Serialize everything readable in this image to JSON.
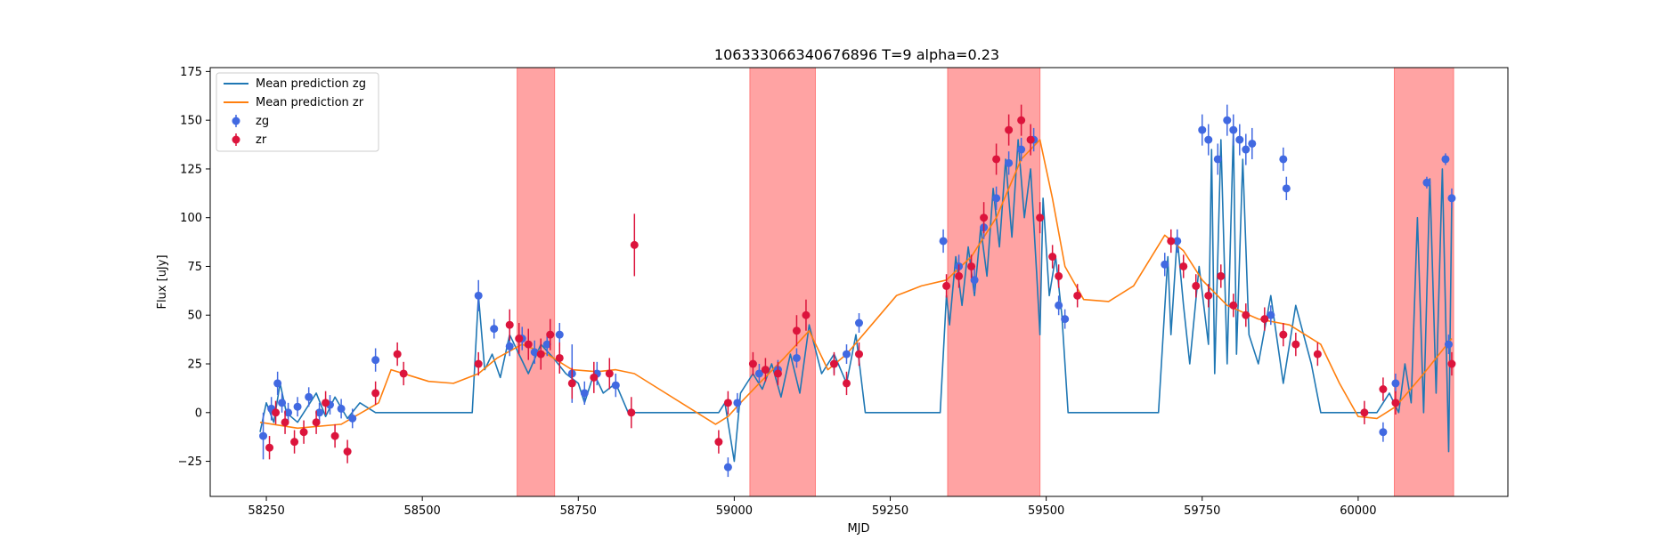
{
  "chart_data": {
    "type": "line",
    "title": "106333066340676896 T=9 alpha=0.23",
    "xlabel": "MJD",
    "ylabel": "Flux [uJy]",
    "xlim": [
      58160,
      60240
    ],
    "ylim": [
      -43,
      177
    ],
    "x_ticks": [
      58250,
      58500,
      58750,
      59000,
      59250,
      59500,
      59750,
      60000
    ],
    "y_ticks": [
      -25,
      0,
      25,
      50,
      75,
      100,
      125,
      150,
      175
    ],
    "grid": false,
    "legend_position": "upper-left",
    "legend": [
      {
        "label": "Mean prediction zg",
        "kind": "line",
        "color": "#1f77b4"
      },
      {
        "label": "Mean prediction zr",
        "kind": "line",
        "color": "#ff7f0e"
      },
      {
        "label": "zg",
        "kind": "errorbar",
        "color": "#4169e1"
      },
      {
        "label": "zr",
        "kind": "errorbar",
        "color": "#dc143c"
      }
    ],
    "shaded_regions": [
      {
        "x0": 58652,
        "x1": 58712
      },
      {
        "x0": 59025,
        "x1": 59130
      },
      {
        "x0": 59342,
        "x1": 59490
      },
      {
        "x0": 60058,
        "x1": 60153
      }
    ],
    "shade_color": "#ff6666",
    "series": [
      {
        "name": "Mean prediction zr",
        "color": "#ff7f0e",
        "x": [
          58240,
          58300,
          58370,
          58430,
          58450,
          58480,
          58510,
          58550,
          58590,
          58620,
          58660,
          58700,
          58740,
          58780,
          58810,
          58840,
          58880,
          58930,
          58970,
          58990,
          59010,
          59040,
          59080,
          59120,
          59150,
          59180,
          59220,
          59260,
          59300,
          59340,
          59380,
          59420,
          59460,
          59490,
          59510,
          59530,
          59560,
          59600,
          59640,
          59690,
          59720,
          59750,
          59790,
          59840,
          59890,
          59940,
          59970,
          60000,
          60030,
          60060,
          60100,
          60150
        ],
        "y": [
          -5,
          -8,
          -6,
          5,
          22,
          19,
          16,
          15,
          20,
          28,
          35,
          30,
          22,
          21,
          22,
          20,
          12,
          2,
          -6,
          -2,
          5,
          15,
          28,
          42,
          22,
          30,
          45,
          60,
          65,
          68,
          80,
          100,
          130,
          140,
          110,
          75,
          58,
          57,
          65,
          91,
          83,
          68,
          55,
          48,
          45,
          35,
          15,
          -2,
          -3,
          3,
          18,
          38
        ]
      },
      {
        "name": "Mean prediction zg",
        "color": "#1f77b4",
        "x": [
          58240,
          58250,
          58262,
          58272,
          58282,
          58300,
          58330,
          58345,
          58360,
          58380,
          58400,
          58425,
          58450,
          58480,
          58520,
          58560,
          58580,
          58590,
          58600,
          58612,
          58625,
          58640,
          58655,
          58670,
          58690,
          58710,
          58730,
          58750,
          58760,
          58775,
          58790,
          58810,
          58830,
          58850,
          58900,
          58950,
          58975,
          58985,
          59000,
          59010,
          59030,
          59045,
          59060,
          59075,
          59090,
          59105,
          59120,
          59140,
          59160,
          59180,
          59195,
          59210,
          59260,
          59300,
          59330,
          59340,
          59345,
          59355,
          59365,
          59375,
          59385,
          59395,
          59405,
          59415,
          59425,
          59435,
          59445,
          59455,
          59465,
          59475,
          59485,
          59490,
          59495,
          59505,
          59515,
          59525,
          59535,
          59560,
          59620,
          59680,
          59695,
          59700,
          59710,
          59720,
          59730,
          59745,
          59760,
          59765,
          59770,
          59780,
          59790,
          59800,
          59805,
          59815,
          59825,
          59840,
          59860,
          59880,
          59900,
          59925,
          59940,
          59960,
          60000,
          60030,
          60050,
          60065,
          60075,
          60085,
          60095,
          60105,
          60115,
          60125,
          60135,
          60145,
          60150
        ],
        "y": [
          -10,
          5,
          -5,
          15,
          0,
          -5,
          10,
          -2,
          8,
          -3,
          5,
          0,
          0,
          0,
          0,
          0,
          0,
          60,
          22,
          30,
          18,
          40,
          30,
          20,
          35,
          28,
          20,
          15,
          5,
          20,
          10,
          15,
          0,
          0,
          0,
          0,
          0,
          5,
          -25,
          10,
          20,
          12,
          25,
          8,
          30,
          10,
          45,
          20,
          30,
          15,
          40,
          0,
          0,
          0,
          0,
          60,
          45,
          80,
          55,
          85,
          60,
          95,
          70,
          115,
          85,
          130,
          90,
          140,
          100,
          125,
          70,
          40,
          110,
          60,
          80,
          50,
          0,
          0,
          0,
          0,
          80,
          40,
          90,
          55,
          25,
          75,
          35,
          135,
          20,
          140,
          25,
          145,
          30,
          130,
          40,
          25,
          60,
          15,
          55,
          25,
          0,
          0,
          0,
          0,
          10,
          0,
          25,
          5,
          100,
          0,
          120,
          10,
          125,
          -20,
          110
        ]
      },
      {
        "name": "zg",
        "color": "#4169e1",
        "x": [
          58245,
          58258,
          58268,
          58275,
          58285,
          58300,
          58318,
          58335,
          58352,
          58370,
          58388,
          58425,
          58590,
          58615,
          58640,
          58660,
          58680,
          58700,
          58720,
          58740,
          58760,
          58780,
          58810,
          58990,
          59005,
          59040,
          59070,
          59100,
          59160,
          59180,
          59200,
          59335,
          59360,
          59385,
          59400,
          59420,
          59440,
          59460,
          59480,
          59520,
          59530,
          59690,
          59710,
          59750,
          59760,
          59775,
          59790,
          59800,
          59810,
          59820,
          59830,
          59860,
          59880,
          59885,
          60040,
          60060,
          60110,
          60140,
          60145,
          60150
        ],
        "y": [
          -12,
          2,
          15,
          5,
          0,
          3,
          8,
          0,
          4,
          2,
          -3,
          27,
          60,
          43,
          34,
          38,
          31,
          35,
          40,
          20,
          10,
          20,
          14,
          -28,
          5,
          20,
          22,
          28,
          25,
          30,
          46,
          88,
          75,
          68,
          95,
          110,
          128,
          135,
          140,
          55,
          48,
          76,
          88,
          145,
          140,
          130,
          150,
          145,
          140,
          135,
          138,
          50,
          130,
          115,
          -10,
          15,
          118,
          130,
          35,
          110
        ],
        "yerr": [
          12,
          6,
          6,
          5,
          5,
          5,
          5,
          5,
          5,
          5,
          5,
          6,
          8,
          5,
          5,
          6,
          6,
          6,
          6,
          15,
          6,
          6,
          6,
          5,
          5,
          5,
          5,
          5,
          5,
          5,
          5,
          6,
          6,
          6,
          6,
          6,
          6,
          6,
          6,
          5,
          5,
          6,
          6,
          8,
          8,
          8,
          8,
          8,
          8,
          8,
          8,
          5,
          6,
          6,
          5,
          5,
          3,
          3,
          5,
          5
        ]
      },
      {
        "name": "zr",
        "color": "#dc143c",
        "x": [
          58255,
          58265,
          58280,
          58295,
          58310,
          58330,
          58345,
          58360,
          58380,
          58425,
          58460,
          58470,
          58590,
          58640,
          58655,
          58670,
          58690,
          58705,
          58720,
          58740,
          58775,
          58800,
          58840,
          58835,
          58975,
          58990,
          59030,
          59050,
          59070,
          59100,
          59115,
          59160,
          59180,
          59200,
          59340,
          59360,
          59380,
          59400,
          59420,
          59440,
          59460,
          59475,
          59490,
          59510,
          59520,
          59550,
          59700,
          59720,
          59740,
          59760,
          59780,
          59800,
          59820,
          59850,
          59880,
          59900,
          59935,
          60010,
          60040,
          60060,
          60150
        ],
        "y": [
          -18,
          0,
          -5,
          -15,
          -10,
          -5,
          5,
          -12,
          -20,
          10,
          30,
          20,
          25,
          45,
          38,
          35,
          30,
          40,
          28,
          15,
          18,
          20,
          86,
          0,
          -15,
          5,
          25,
          22,
          20,
          42,
          50,
          25,
          15,
          30,
          65,
          70,
          75,
          100,
          130,
          145,
          150,
          140,
          100,
          80,
          70,
          60,
          88,
          75,
          65,
          60,
          70,
          55,
          50,
          48,
          40,
          35,
          30,
          0,
          12,
          5,
          25
        ],
        "yerr": [
          6,
          6,
          6,
          6,
          6,
          6,
          6,
          6,
          6,
          6,
          6,
          6,
          6,
          8,
          8,
          8,
          8,
          8,
          8,
          8,
          8,
          8,
          16,
          8,
          6,
          6,
          6,
          6,
          6,
          8,
          8,
          6,
          6,
          6,
          6,
          6,
          6,
          8,
          8,
          8,
          8,
          8,
          8,
          6,
          6,
          6,
          6,
          6,
          6,
          6,
          6,
          6,
          6,
          6,
          6,
          6,
          6,
          6,
          6,
          6,
          6
        ]
      }
    ]
  }
}
